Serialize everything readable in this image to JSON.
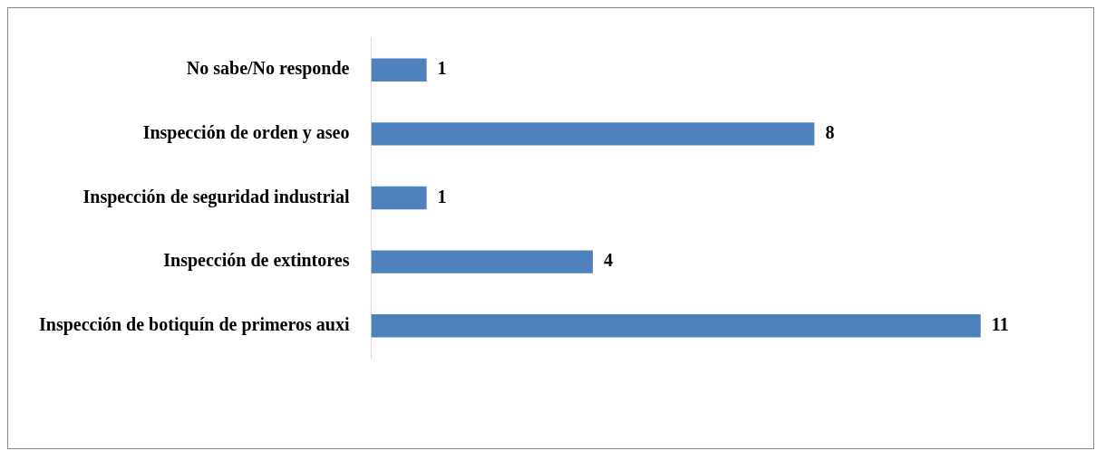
{
  "chart_data": {
    "type": "bar",
    "orientation": "horizontal",
    "categories": [
      "No sabe/No responde",
      "Inspección de orden y aseo",
      "Inspección de seguridad industrial",
      "Inspección de extintores",
      "Inspección de botiquín de primeros auxi"
    ],
    "values": [
      1,
      8,
      1,
      4,
      11
    ],
    "color": "#4f81bd",
    "data_labels": true
  }
}
